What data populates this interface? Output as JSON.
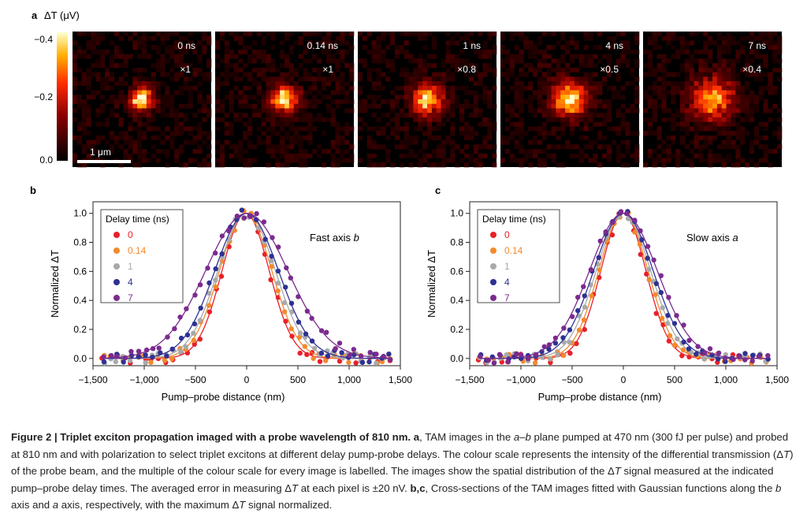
{
  "panel_a": {
    "label": "a",
    "colorbar_title": "ΔT (μV)",
    "colorbar_ticks": [
      "−0.4",
      "−0.2",
      "0.0"
    ],
    "scale_bar_label": "1 μm",
    "colors": {
      "low": "#000000",
      "mid": "#ff2a00",
      "high": "#ffffd0"
    },
    "images": [
      {
        "time": "0 ns",
        "multiplier": "×1",
        "spread": 0.55,
        "brightness": 1.0
      },
      {
        "time": "0.14 ns",
        "multiplier": "×1",
        "spread": 0.62,
        "brightness": 0.95
      },
      {
        "time": "1 ns",
        "multiplier": "×0.8",
        "spread": 0.72,
        "brightness": 0.9
      },
      {
        "time": "4 ns",
        "multiplier": "×0.5",
        "spread": 0.85,
        "brightness": 0.85
      },
      {
        "time": "7 ns",
        "multiplier": "×0.4",
        "spread": 1.0,
        "brightness": 0.75
      }
    ]
  },
  "chart_data": [
    {
      "panel_label": "b",
      "type": "scatter",
      "annotation": "Fast axis b",
      "annotation_parts": [
        "Fast axis ",
        "b"
      ],
      "xlabel": "Pump–probe distance (nm)",
      "ylabel": "Normalized ΔT",
      "xlim": [
        -1500,
        1500
      ],
      "ylim": [
        -0.05,
        1.08
      ],
      "xticks": [
        -1500,
        -1000,
        -500,
        0,
        500,
        1000,
        1500
      ],
      "xtick_labels": [
        "−1,500",
        "−1,000",
        "−500",
        "0",
        "500",
        "1,000",
        "1,500"
      ],
      "yticks": [
        0.0,
        0.2,
        0.4,
        0.6,
        0.8,
        1.0
      ],
      "ytick_labels": [
        "0.0",
        "0.2",
        "0.4",
        "0.6",
        "0.8",
        "1.0"
      ],
      "legend_title": "Delay time (ns)",
      "legend_position": "top-left",
      "series": [
        {
          "name": "0",
          "color": "#e8202a",
          "sigma": 230,
          "center": -10
        },
        {
          "name": "0.14",
          "color": "#f28a2e",
          "sigma": 255,
          "center": -10
        },
        {
          "name": "1",
          "color": "#a7a9ac",
          "sigma": 280,
          "center": 0
        },
        {
          "name": "4",
          "color": "#2e3192",
          "sigma": 310,
          "center": 0
        },
        {
          "name": "7",
          "color": "#7b2b8e",
          "sigma": 400,
          "center": 0
        }
      ]
    },
    {
      "panel_label": "c",
      "type": "scatter",
      "annotation": "Slow axis a",
      "annotation_parts": [
        "Slow axis ",
        "a"
      ],
      "xlabel": "Pump–probe distance (nm)",
      "ylabel": "Normalized ΔT",
      "xlim": [
        -1500,
        1500
      ],
      "ylim": [
        -0.05,
        1.08
      ],
      "xticks": [
        -1500,
        -1000,
        -500,
        0,
        500,
        1000,
        1500
      ],
      "xtick_labels": [
        "−1,500",
        "−1,000",
        "−500",
        "0",
        "500",
        "1,000",
        "1,500"
      ],
      "yticks": [
        0.0,
        0.2,
        0.4,
        0.6,
        0.8,
        1.0
      ],
      "ytick_labels": [
        "0.0",
        "0.2",
        "0.4",
        "0.6",
        "0.8",
        "1.0"
      ],
      "legend_title": "Delay time (ns)",
      "legend_position": "top-left",
      "series": [
        {
          "name": "0",
          "color": "#e8202a",
          "sigma": 220,
          "center": 0
        },
        {
          "name": "0.14",
          "color": "#f28a2e",
          "sigma": 240,
          "center": 0
        },
        {
          "name": "1",
          "color": "#a7a9ac",
          "sigma": 265,
          "center": 0
        },
        {
          "name": "4",
          "color": "#2e3192",
          "sigma": 290,
          "center": 0
        },
        {
          "name": "7",
          "color": "#7b2b8e",
          "sigma": 330,
          "center": 0
        }
      ]
    }
  ],
  "caption": {
    "figure_label": "Figure 2 | Triplet exciton propagation imaged with a probe wavelength of 810 nm.",
    "t1": " ",
    "a": "a",
    "t2": ", TAM images in the ",
    "ab": "a",
    "t3": "–",
    "bb": "b",
    "t4": " plane pumped at 470 nm (300 fJ per pulse) and probed at 810 nm and with polarization to select triplet excitons at different delay pump-probe delays. The colour scale represents the intensity of the differential transmission (Δ",
    "T1": "T",
    "t5": ") of the probe beam, and the multiple of the colour scale for every image is labelled. The images show the spatial distribution of the Δ",
    "T2": "T",
    "t6": " signal measured at the indicated pump–probe delay times. The averaged error in measuring Δ",
    "T3": "T",
    "t7": " at each pixel is ±20 nV. ",
    "bc": "b,c",
    "t8": ", Cross-sections of the TAM images fitted with Gaussian functions along the ",
    "baxis": "b",
    "t9": " axis and ",
    "aaxis": "a",
    "t10": " axis, respectively, with the maximum Δ",
    "T4": "T",
    "t11": " signal normalized."
  }
}
